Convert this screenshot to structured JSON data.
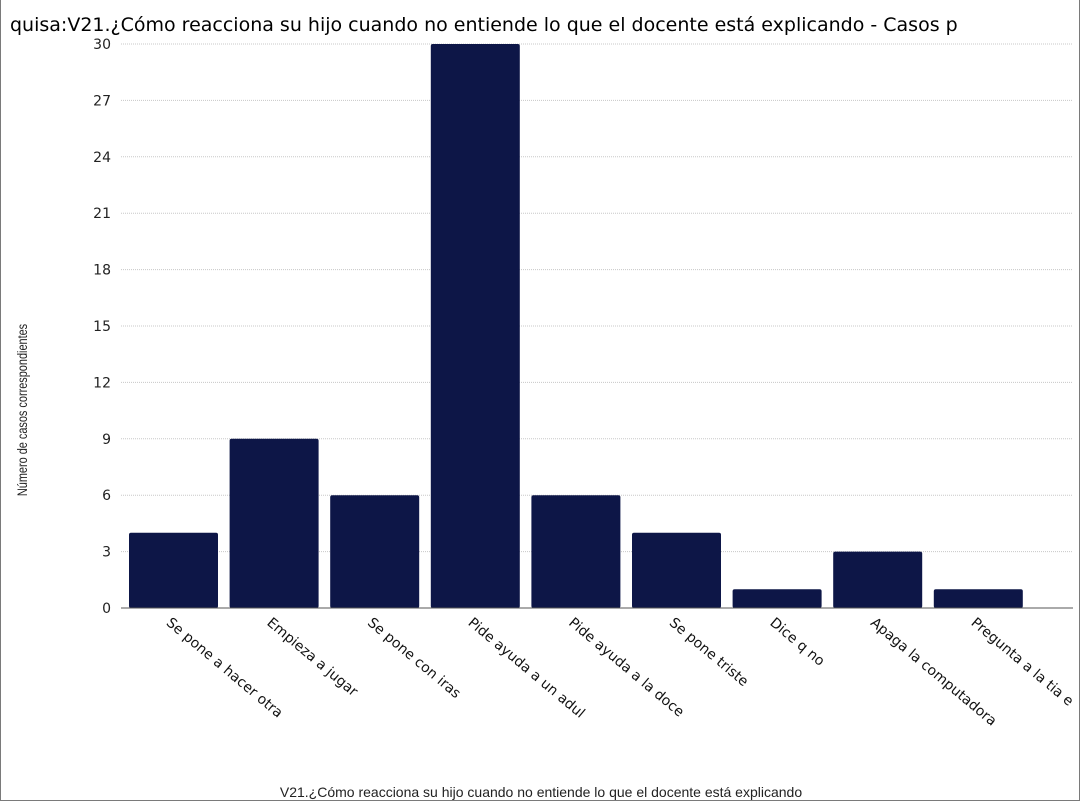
{
  "chart_data": {
    "type": "bar",
    "title": "quisa:V21.¿Cómo reacciona su hijo cuando no entiende lo que el docente está explicando - Casos p",
    "xlabel": "V21.¿Cómo reacciona su hijo cuando no entiende lo que el docente está explicando",
    "ylabel": "Número de casos correspondientes",
    "categories": [
      "Se pone a hacer otra",
      "Empieza a jugar",
      "Se pone con iras",
      "Pide ayuda a un adul",
      "Pide ayuda a la doce",
      "Se pone triste",
      "Dice q no",
      "Apaga la computadora",
      "Pregunta a la tia e"
    ],
    "values": [
      4,
      9,
      6,
      30,
      6,
      4,
      1,
      3,
      1
    ],
    "ylim": [
      0,
      30
    ],
    "yticks": [
      0,
      3,
      6,
      9,
      12,
      15,
      18,
      21,
      24,
      27,
      30
    ],
    "grid": true,
    "colors": {
      "bar": "#0d1647",
      "grid": "#c8c8c8",
      "axis": "#555555"
    }
  }
}
